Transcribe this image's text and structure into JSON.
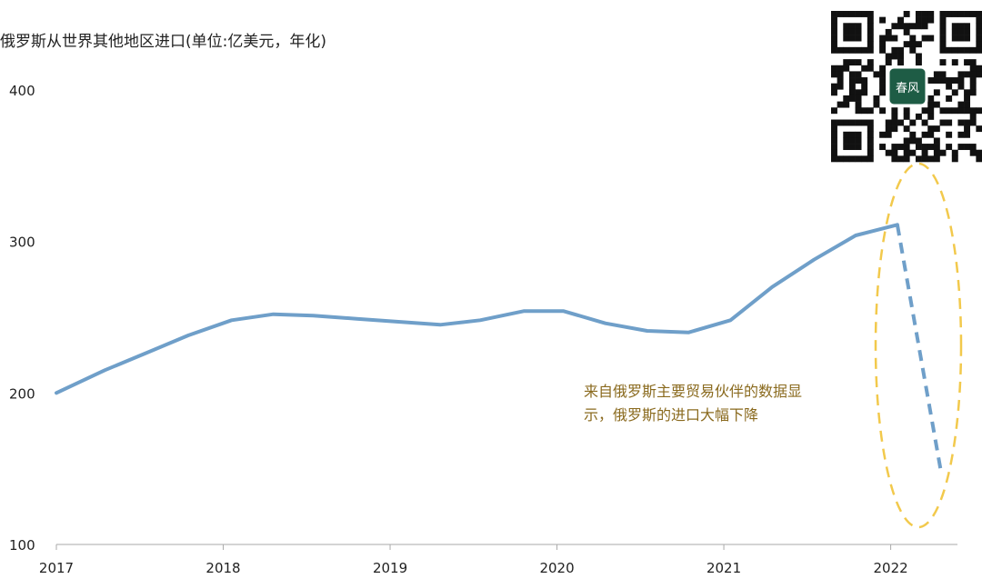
{
  "colors": {
    "line": "#6f9fc9",
    "axis": "#aaaaaa",
    "highlight": "#f2c94c",
    "annotation": "#8a6a1e",
    "logo_bg": "#1e5c45"
  },
  "icons": {
    "qr_code": "qr-code-icon",
    "logo": "logo-icon"
  },
  "logo_text": "春风",
  "chart_data": {
    "type": "line",
    "title": "俄罗斯从世界其他地区进口(单位:亿美元，年化)",
    "xlabel": "",
    "ylabel": "",
    "x_ticks": [
      "2017",
      "2018",
      "2019",
      "2020",
      "2021",
      "2022"
    ],
    "y_ticks": [
      "100",
      "200",
      "300",
      "400"
    ],
    "xlim": [
      2017.0,
      2022.4
    ],
    "ylim": [
      100,
      400
    ],
    "grid": false,
    "legend": "none",
    "series": [
      {
        "style": "solid",
        "x": [
          2017.0,
          2017.29,
          2017.53,
          2017.79,
          2018.05,
          2018.3,
          2018.54,
          2018.8,
          2019.05,
          2019.3,
          2019.54,
          2019.8,
          2020.04,
          2020.29,
          2020.54,
          2020.79,
          2021.04,
          2021.29,
          2021.54,
          2021.79,
          2022.04
        ],
        "y": [
          200,
          215,
          226,
          238,
          248,
          252,
          251,
          249,
          247,
          245,
          248,
          254,
          254,
          246,
          241,
          240,
          248,
          270,
          288,
          304,
          311
        ]
      },
      {
        "style": "dashed",
        "x": [
          2022.04,
          2022.3
        ],
        "y": [
          311,
          149
        ]
      }
    ],
    "annotations": [
      {
        "lines": [
          "来自俄罗斯主要贸易伙伴的数据显",
          "示，俄罗斯的进口大幅下降"
        ]
      }
    ]
  }
}
